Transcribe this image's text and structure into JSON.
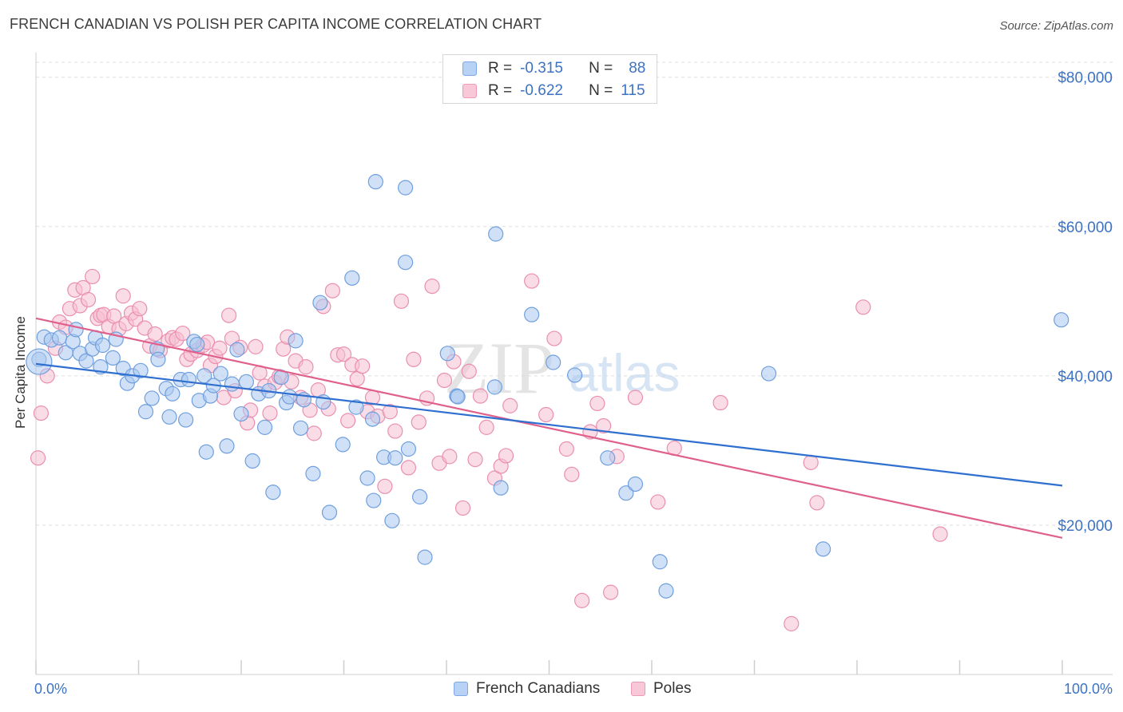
{
  "title": "FRENCH CANADIAN VS POLISH PER CAPITA INCOME CORRELATION CHART",
  "source": "Source: ZipAtlas.com",
  "watermark": {
    "zip": "ZIP",
    "atlas": "atlas"
  },
  "legend_top": {
    "rows": [
      {
        "r_label": "R =",
        "r_value": "-0.315",
        "n_label": "N =",
        "n_value": "88"
      },
      {
        "r_label": "R =",
        "r_value": "-0.622",
        "n_label": "N =",
        "n_value": "115"
      }
    ]
  },
  "bottom_legend": {
    "series1": "French Canadians",
    "series2": "Poles"
  },
  "colors": {
    "blue_fill": "#a9c8f0",
    "blue_stroke": "#6f9fde",
    "blue_line": "#2f6fd0",
    "pink_fill": "#f6bfd1",
    "pink_stroke": "#ea8fb0",
    "pink_line": "#e0608c",
    "axis_text": "#3c72c4",
    "grid": "#dddddd"
  },
  "chart_data": {
    "type": "scatter",
    "title": "FRENCH CANADIAN VS POLISH PER CAPITA INCOME CORRELATION CHART",
    "xlabel": "",
    "ylabel": "Per Capita Income",
    "xlim": [
      0,
      100
    ],
    "ylim": [
      0,
      82000
    ],
    "x_tick_labels": [
      "0.0%",
      "100.0%"
    ],
    "y_ticks": [
      20000,
      40000,
      60000,
      80000
    ],
    "y_tick_labels": [
      "$20,000",
      "$40,000",
      "$60,000",
      "$80,000"
    ],
    "grid": true,
    "legend_position": "top-center",
    "series": [
      {
        "name": "French Canadians",
        "r": -0.315,
        "n": 88,
        "trend": {
          "x": [
            0,
            100
          ],
          "y": [
            41600,
            25300
          ]
        },
        "points": [
          [
            0.3,
            42200
          ],
          [
            0.8,
            45200
          ],
          [
            1.5,
            44800
          ],
          [
            2.3,
            45100
          ],
          [
            2.9,
            43100
          ],
          [
            3.6,
            44600
          ],
          [
            3.9,
            46200
          ],
          [
            4.3,
            43000
          ],
          [
            4.9,
            42000
          ],
          [
            5.5,
            43600
          ],
          [
            5.8,
            45100
          ],
          [
            6.5,
            44100
          ],
          [
            6.3,
            41200
          ],
          [
            7.5,
            42400
          ],
          [
            7.8,
            44900
          ],
          [
            8.5,
            41000
          ],
          [
            8.9,
            39000
          ],
          [
            9.4,
            40000
          ],
          [
            10.2,
            40700
          ],
          [
            10.7,
            35200
          ],
          [
            11.3,
            37000
          ],
          [
            11.8,
            43600
          ],
          [
            11.9,
            42200
          ],
          [
            12.7,
            38300
          ],
          [
            13.0,
            34500
          ],
          [
            13.3,
            37600
          ],
          [
            14.1,
            39500
          ],
          [
            14.6,
            34100
          ],
          [
            14.9,
            39500
          ],
          [
            15.4,
            44600
          ],
          [
            15.7,
            44200
          ],
          [
            15.9,
            36700
          ],
          [
            16.4,
            40000
          ],
          [
            16.6,
            29800
          ],
          [
            17.0,
            37300
          ],
          [
            17.3,
            38700
          ],
          [
            18.0,
            40300
          ],
          [
            18.6,
            30600
          ],
          [
            19.1,
            38900
          ],
          [
            19.6,
            43500
          ],
          [
            20.0,
            34900
          ],
          [
            20.5,
            39200
          ],
          [
            21.1,
            28600
          ],
          [
            21.7,
            37600
          ],
          [
            22.3,
            33100
          ],
          [
            22.7,
            38000
          ],
          [
            23.1,
            24400
          ],
          [
            23.9,
            39800
          ],
          [
            24.4,
            36400
          ],
          [
            24.7,
            37200
          ],
          [
            25.3,
            44700
          ],
          [
            25.8,
            33000
          ],
          [
            26.1,
            36800
          ],
          [
            27.0,
            26900
          ],
          [
            27.7,
            49800
          ],
          [
            28.0,
            36500
          ],
          [
            28.6,
            21700
          ],
          [
            29.9,
            30800
          ],
          [
            30.8,
            53100
          ],
          [
            31.2,
            35800
          ],
          [
            32.3,
            26300
          ],
          [
            32.8,
            34200
          ],
          [
            32.9,
            23300
          ],
          [
            33.1,
            66000
          ],
          [
            33.9,
            29100
          ],
          [
            34.7,
            20600
          ],
          [
            35.0,
            29000
          ],
          [
            36.0,
            55200
          ],
          [
            36.0,
            65200
          ],
          [
            36.3,
            30200
          ],
          [
            37.4,
            23800
          ],
          [
            37.9,
            15700
          ],
          [
            40.1,
            43000
          ],
          [
            41.0,
            37300
          ],
          [
            41.1,
            37200
          ],
          [
            44.7,
            38500
          ],
          [
            44.8,
            59000
          ],
          [
            45.3,
            25000
          ],
          [
            48.3,
            48200
          ],
          [
            50.4,
            41800
          ],
          [
            52.5,
            40100
          ],
          [
            55.7,
            29000
          ],
          [
            57.5,
            24300
          ],
          [
            58.4,
            25500
          ],
          [
            60.8,
            15100
          ],
          [
            61.4,
            11200
          ],
          [
            71.4,
            40300
          ],
          [
            76.7,
            16800
          ],
          [
            99.9,
            47500
          ]
        ]
      },
      {
        "name": "Poles",
        "r": -0.622,
        "n": 115,
        "trend": {
          "x": [
            0,
            100
          ],
          "y": [
            47700,
            18300
          ]
        },
        "points": [
          [
            0.2,
            29000
          ],
          [
            0.5,
            35000
          ],
          [
            1.1,
            40000
          ],
          [
            1.9,
            43700
          ],
          [
            2.3,
            47200
          ],
          [
            2.9,
            46500
          ],
          [
            3.3,
            49000
          ],
          [
            3.8,
            51500
          ],
          [
            4.3,
            49400
          ],
          [
            4.6,
            51800
          ],
          [
            5.1,
            50200
          ],
          [
            5.5,
            53300
          ],
          [
            6.0,
            47700
          ],
          [
            6.3,
            48100
          ],
          [
            6.6,
            48200
          ],
          [
            7.1,
            46600
          ],
          [
            7.6,
            48000
          ],
          [
            8.1,
            46300
          ],
          [
            8.5,
            50700
          ],
          [
            8.8,
            47000
          ],
          [
            9.3,
            48400
          ],
          [
            9.7,
            47600
          ],
          [
            10.1,
            49000
          ],
          [
            10.6,
            46400
          ],
          [
            11.1,
            44000
          ],
          [
            11.6,
            45600
          ],
          [
            12.1,
            43400
          ],
          [
            12.9,
            44700
          ],
          [
            13.3,
            45100
          ],
          [
            13.7,
            44900
          ],
          [
            14.3,
            45700
          ],
          [
            14.7,
            42200
          ],
          [
            15.1,
            42900
          ],
          [
            15.7,
            43400
          ],
          [
            16.3,
            44100
          ],
          [
            16.7,
            44500
          ],
          [
            17.0,
            41400
          ],
          [
            17.5,
            42600
          ],
          [
            17.9,
            43700
          ],
          [
            18.3,
            37100
          ],
          [
            18.8,
            48100
          ],
          [
            19.1,
            45000
          ],
          [
            19.4,
            38000
          ],
          [
            19.9,
            43800
          ],
          [
            20.6,
            33700
          ],
          [
            20.9,
            35400
          ],
          [
            21.4,
            43900
          ],
          [
            21.8,
            40400
          ],
          [
            22.3,
            38600
          ],
          [
            22.8,
            35000
          ],
          [
            23.3,
            39100
          ],
          [
            23.7,
            39900
          ],
          [
            24.1,
            43600
          ],
          [
            24.5,
            45200
          ],
          [
            24.9,
            39200
          ],
          [
            25.3,
            42000
          ],
          [
            25.8,
            37100
          ],
          [
            26.3,
            41200
          ],
          [
            26.7,
            35400
          ],
          [
            27.1,
            32300
          ],
          [
            27.5,
            38100
          ],
          [
            28.0,
            49300
          ],
          [
            28.5,
            35600
          ],
          [
            28.9,
            51400
          ],
          [
            29.4,
            42800
          ],
          [
            30.0,
            42900
          ],
          [
            30.4,
            34000
          ],
          [
            30.8,
            41500
          ],
          [
            31.3,
            39600
          ],
          [
            31.8,
            41300
          ],
          [
            32.3,
            35200
          ],
          [
            32.8,
            37100
          ],
          [
            33.3,
            34600
          ],
          [
            34.0,
            25200
          ],
          [
            34.5,
            35200
          ],
          [
            35.0,
            32600
          ],
          [
            35.6,
            50000
          ],
          [
            36.3,
            27700
          ],
          [
            36.8,
            42200
          ],
          [
            37.3,
            33800
          ],
          [
            38.1,
            37000
          ],
          [
            38.6,
            52000
          ],
          [
            39.3,
            28300
          ],
          [
            39.8,
            39400
          ],
          [
            40.3,
            29200
          ],
          [
            40.7,
            41900
          ],
          [
            41.6,
            22300
          ],
          [
            42.2,
            40600
          ],
          [
            42.8,
            28800
          ],
          [
            43.3,
            37300
          ],
          [
            43.9,
            33100
          ],
          [
            44.7,
            26300
          ],
          [
            45.3,
            27900
          ],
          [
            45.8,
            29300
          ],
          [
            46.2,
            36000
          ],
          [
            48.3,
            52700
          ],
          [
            49.7,
            34800
          ],
          [
            50.5,
            45000
          ],
          [
            51.7,
            30200
          ],
          [
            52.2,
            26800
          ],
          [
            53.2,
            9900
          ],
          [
            54.0,
            32500
          ],
          [
            54.7,
            36300
          ],
          [
            55.3,
            33300
          ],
          [
            56.0,
            11000
          ],
          [
            56.6,
            29200
          ],
          [
            58.4,
            37100
          ],
          [
            60.6,
            23100
          ],
          [
            62.2,
            30300
          ],
          [
            66.7,
            36400
          ],
          [
            73.6,
            6800
          ],
          [
            75.5,
            28400
          ],
          [
            76.1,
            23000
          ],
          [
            80.6,
            49200
          ],
          [
            88.1,
            18800
          ]
        ]
      }
    ]
  }
}
